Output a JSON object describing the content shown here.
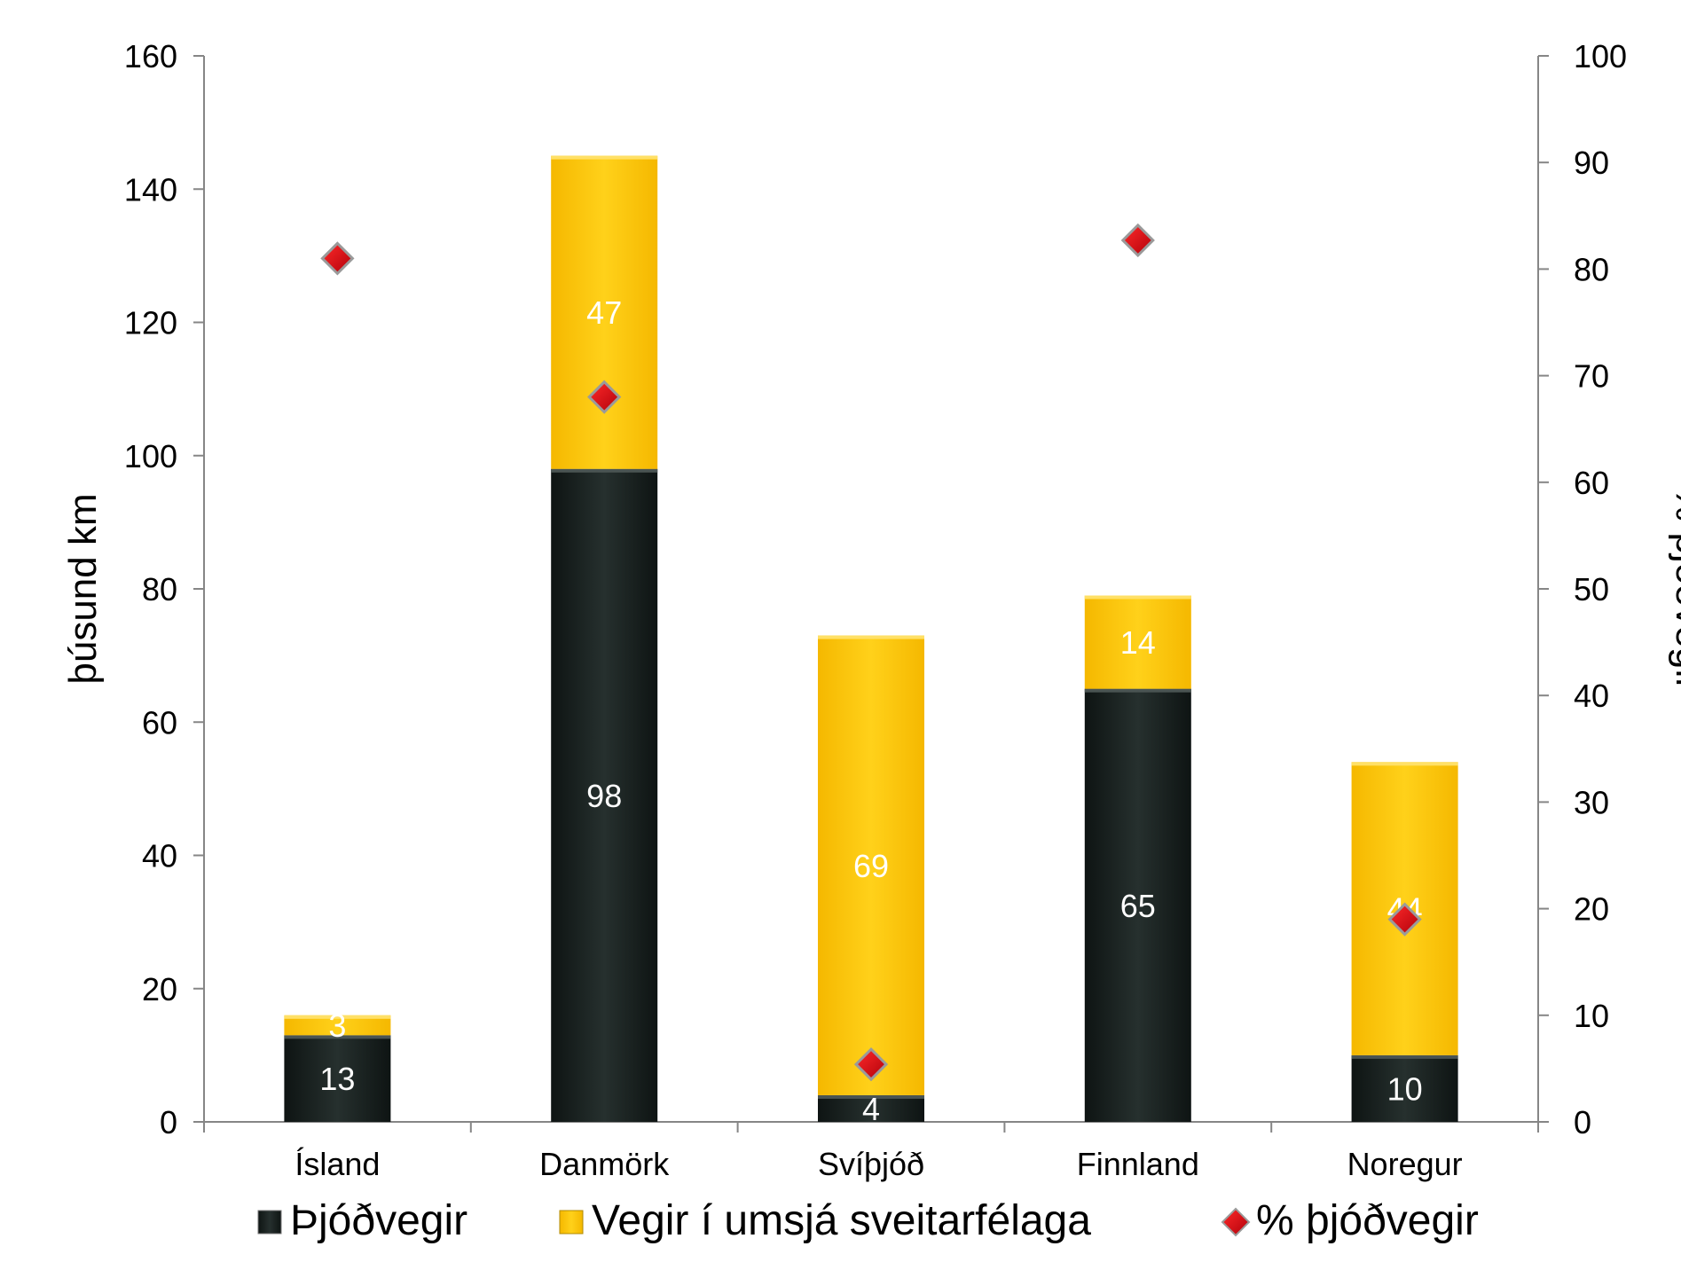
{
  "chart_data": {
    "type": "bar",
    "stacked": true,
    "categories": [
      "Ísland",
      "Danmörk",
      "Svíþjóð",
      "Finnland",
      "Noregur"
    ],
    "series": [
      {
        "name": "Þjóðvegir",
        "axis": "left",
        "values": [
          13,
          98,
          4,
          65,
          10
        ],
        "color": "#1a2220",
        "label_color": "#ffffff"
      },
      {
        "name": "Vegir í umsjá sveitarfélaga",
        "axis": "left",
        "values": [
          3,
          47,
          69,
          14,
          44
        ],
        "color": "#ffc800",
        "label_color": "#ffffff"
      },
      {
        "name": "% þjóðvegir",
        "axis": "right",
        "type": "scatter",
        "marker": "diamond",
        "values": [
          81,
          68,
          5.4,
          82.7,
          19
        ],
        "color": "#e0000f"
      }
    ],
    "ylabel": "þúsund km",
    "y2label": "% þjóðvegir",
    "ylim": [
      0,
      160
    ],
    "yticks": [
      0,
      20,
      40,
      60,
      80,
      100,
      120,
      140,
      160
    ],
    "y2lim": [
      0,
      100
    ],
    "y2ticks": [
      0,
      10,
      20,
      30,
      40,
      50,
      60,
      70,
      80,
      90,
      100
    ],
    "grid": false,
    "legend_position": "bottom"
  }
}
